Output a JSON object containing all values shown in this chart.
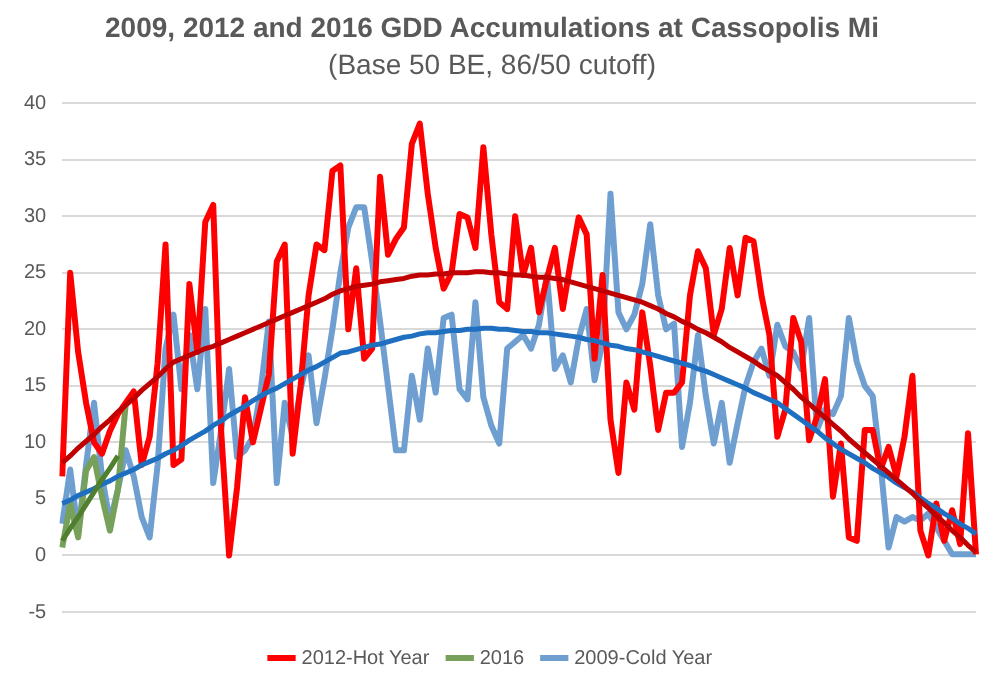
{
  "chart_data": {
    "type": "line",
    "title": "2009, 2012 and 2016 GDD Accumulations at Cassopolis Mi",
    "subtitle": "(Base 50 BE, 86/50 cutoff)",
    "categories": [
      null,
      null,
      null,
      null,
      null,
      null,
      null,
      null,
      null,
      null,
      null,
      null,
      null,
      null,
      null,
      null,
      null,
      null,
      null,
      null,
      null,
      null,
      null,
      null,
      null,
      null,
      null,
      null,
      null,
      null,
      null,
      null,
      null,
      null,
      null,
      null,
      null,
      null,
      null,
      null,
      null,
      null,
      null,
      null,
      null,
      null,
      null,
      null,
      null,
      null,
      null,
      null,
      null,
      null,
      null,
      null,
      null,
      null,
      null,
      null,
      null,
      null,
      null,
      null,
      null,
      null,
      null,
      null,
      null,
      null,
      null,
      null,
      null,
      null,
      null,
      null,
      null,
      null,
      null,
      null,
      null,
      null,
      null,
      null,
      null,
      null,
      null,
      null,
      null,
      null,
      null,
      null,
      null,
      null,
      null,
      null,
      null,
      null,
      null,
      null,
      null,
      null,
      null,
      null,
      null,
      null,
      null,
      null,
      null,
      null,
      null,
      null,
      null,
      null,
      null,
      null
    ],
    "ylim": [
      -5,
      40
    ],
    "yticks": [
      -5,
      0,
      5,
      10,
      15,
      20,
      25,
      30,
      35,
      40
    ],
    "tick_labels": "y",
    "grid": "y",
    "legend": "bottom",
    "marker": "none",
    "line_style": "solid",
    "series": [
      {
        "name": "2012-Hot Year",
        "color": "#ff0000",
        "values": [
          7,
          25,
          18,
          13.5,
          10,
          9,
          11,
          12.5,
          13.5,
          14.5,
          8,
          10.5,
          17,
          27.5,
          8,
          8.5,
          24,
          18,
          29.5,
          31,
          11,
          0,
          6,
          14,
          10,
          13,
          16,
          26,
          27.5,
          9,
          15,
          23,
          27.5,
          27,
          34,
          34.5,
          20,
          25.4,
          17.4,
          18.3,
          33.5,
          26.6,
          28,
          29,
          36.4,
          38.2,
          32,
          27.2,
          23.6,
          25,
          30.2,
          29.9,
          27.2,
          36.1,
          28.4,
          22.4,
          21.8,
          30,
          24.8,
          27.2,
          21.5,
          24.5,
          27.2,
          21.8,
          26,
          29.9,
          28.4,
          17.4,
          24.8,
          12,
          7.3,
          15.3,
          12.9,
          21.5,
          16.8,
          11.1,
          14.4,
          14.4,
          15.3,
          23,
          26.9,
          25.4,
          19.5,
          21.8,
          27.2,
          23,
          28.1,
          27.8,
          23,
          19.5,
          10.5,
          12.9,
          21,
          18.9,
          10.2,
          12.3,
          15.6,
          5.2,
          9.9,
          1.6,
          1.3,
          11.1,
          11.1,
          7.6,
          9.6,
          7,
          10.5,
          15.9,
          2.2,
          0,
          4.6,
          1.3,
          4,
          1,
          10.8,
          0.1
        ]
      },
      {
        "name": "2016",
        "color": "#77a05a",
        "values": [
          0.7,
          4.6,
          1.6,
          7.5,
          8.7,
          5.2,
          2.2,
          5.8,
          13.5,
          null,
          null,
          null,
          null,
          null,
          null,
          null,
          null,
          null,
          null,
          null,
          null,
          null,
          null,
          null,
          null,
          null,
          null,
          null,
          null,
          null,
          null,
          null,
          null,
          null,
          null,
          null,
          null,
          null,
          null,
          null,
          null,
          null,
          null,
          null,
          null,
          null,
          null,
          null,
          null,
          null,
          null,
          null,
          null,
          null,
          null,
          null,
          null,
          null,
          null,
          null,
          null,
          null,
          null,
          null,
          null,
          null,
          null,
          null,
          null,
          null,
          null,
          null,
          null,
          null,
          null,
          null,
          null,
          null,
          null,
          null,
          null,
          null,
          null,
          null,
          null,
          null,
          null,
          null,
          null,
          null,
          null,
          null,
          null,
          null,
          null,
          null,
          null,
          null,
          null,
          null,
          null,
          null,
          null,
          null,
          null,
          null,
          null,
          null,
          null,
          null,
          null,
          null,
          null,
          null,
          null,
          null
        ]
      },
      {
        "name": "2009-Cold Year",
        "color": "#6f9fd0",
        "values": [
          2.8,
          7.6,
          2,
          8,
          13.5,
          7,
          3,
          5.8,
          9.3,
          7,
          3.4,
          1.6,
          8,
          18.3,
          21.3,
          14.7,
          19.5,
          14.7,
          21.8,
          6.4,
          11.1,
          16.5,
          8.7,
          9.3,
          10.5,
          14.7,
          20.7,
          6.4,
          13.5,
          10.5,
          14.7,
          17.7,
          11.7,
          15.6,
          20,
          25,
          29,
          30.8,
          30.8,
          26,
          20.7,
          15,
          9.3,
          9.3,
          15.9,
          12,
          18.3,
          14.4,
          21,
          21.3,
          14.7,
          13.8,
          22.4,
          14,
          11.5,
          9.9,
          18.3,
          18.9,
          19.5,
          18.3,
          20.4,
          24.8,
          16.5,
          17.7,
          15.3,
          19.2,
          21.8,
          15.5,
          18.9,
          32,
          21.5,
          20,
          21.3,
          24,
          29.3,
          23,
          20,
          20.5,
          9.6,
          13.5,
          19.5,
          14.1,
          9.9,
          13.5,
          8.2,
          11.7,
          15,
          17.1,
          18.3,
          15.9,
          20.4,
          18.5,
          18,
          16.5,
          21,
          11.1,
          12.9,
          12.5,
          14.1,
          21,
          17.1,
          15,
          14.1,
          8,
          0.7,
          3.4,
          3,
          3.4,
          3.1,
          3.7,
          2.5,
          1.3,
          0.1,
          0.1,
          0.1,
          0.1
        ]
      },
      {
        "color": "#c00000",
        "values": [
          8.2,
          8.8,
          9.5,
          10.1,
          10.7,
          11.4,
          12,
          12.7,
          13.3,
          13.9,
          14.6,
          15.2,
          15.8,
          16.5,
          17.1,
          17.4,
          17.7,
          18,
          18.3,
          18.5,
          18.8,
          19.1,
          19.4,
          19.7,
          20,
          20.3,
          20.6,
          20.9,
          21.2,
          21.5,
          21.8,
          22.1,
          22.4,
          22.7,
          23.1,
          23.4,
          23.6,
          23.8,
          23.9,
          24,
          24.2,
          24.3,
          24.4,
          24.5,
          24.7,
          24.8,
          24.8,
          24.9,
          24.9,
          25,
          25,
          25,
          25.1,
          25.1,
          25,
          25,
          24.9,
          24.8,
          24.8,
          24.7,
          24.6,
          24.6,
          24.5,
          24.4,
          24.2,
          24,
          23.8,
          23.6,
          23.4,
          23.2,
          23,
          22.8,
          22.6,
          22.4,
          22.1,
          21.8,
          21.4,
          21.1,
          20.7,
          20.4,
          20,
          19.7,
          19.3,
          18.9,
          18.4,
          18,
          17.6,
          17.2,
          16.7,
          16.3,
          15.9,
          15.3,
          14.7,
          14,
          13.4,
          12.8,
          12.2,
          11.6,
          11,
          10.3,
          9.7,
          9.1,
          8.5,
          7.9,
          7.3,
          6.7,
          6.1,
          5.5,
          4.8,
          4.2,
          3.5,
          2.9,
          2.2,
          1.6,
          0.9,
          0.3
        ]
      },
      {
        "color": "#4f7f2f",
        "values": [
          1.3,
          2.4,
          3.4,
          4.5,
          5.6,
          6.7,
          7.7,
          8.8,
          null,
          null,
          null,
          null,
          null,
          null,
          null,
          null,
          null,
          null,
          null,
          null,
          null,
          null,
          null,
          null,
          null,
          null,
          null,
          null,
          null,
          null,
          null,
          null,
          null,
          null,
          null,
          null,
          null,
          null,
          null,
          null,
          null,
          null,
          null,
          null,
          null,
          null,
          null,
          null,
          null,
          null,
          null,
          null,
          null,
          null,
          null,
          null,
          null,
          null,
          null,
          null,
          null,
          null,
          null,
          null,
          null,
          null,
          null,
          null,
          null,
          null,
          null,
          null,
          null,
          null,
          null,
          null,
          null,
          null,
          null,
          null,
          null,
          null,
          null,
          null,
          null,
          null,
          null,
          null,
          null,
          null,
          null,
          null,
          null,
          null,
          null,
          null,
          null,
          null,
          null,
          null,
          null,
          null,
          null,
          null,
          null,
          null,
          null,
          null,
          null,
          null,
          null,
          null,
          null,
          null,
          null,
          null
        ]
      },
      {
        "color": "#1f6fc0",
        "values": [
          4.6,
          4.9,
          5.3,
          5.6,
          5.9,
          6.3,
          6.6,
          7,
          7.3,
          7.6,
          8,
          8.3,
          8.6,
          9,
          9.3,
          9.7,
          10.2,
          10.6,
          11,
          11.5,
          11.9,
          12.4,
          12.8,
          13.2,
          13.7,
          14.1,
          14.5,
          14.8,
          15.2,
          15.6,
          16,
          16.4,
          16.7,
          17.1,
          17.5,
          17.9,
          18,
          18.2,
          18.4,
          18.6,
          18.7,
          18.9,
          19.1,
          19.3,
          19.4,
          19.6,
          19.7,
          19.7,
          19.8,
          19.9,
          19.9,
          20,
          20,
          20.1,
          20.1,
          20,
          20,
          19.9,
          19.8,
          19.8,
          19.7,
          19.7,
          19.6,
          19.5,
          19.4,
          19.3,
          19.1,
          19,
          18.8,
          18.6,
          18.5,
          18.3,
          18.2,
          18,
          17.8,
          17.6,
          17.4,
          17.2,
          17,
          16.8,
          16.5,
          16.3,
          16,
          15.7,
          15.4,
          15.1,
          14.8,
          14.4,
          14.1,
          13.8,
          13.5,
          13,
          12.5,
          12,
          11.5,
          11,
          10.4,
          9.9,
          9.4,
          9,
          8.6,
          8.2,
          7.7,
          7.3,
          6.9,
          6.4,
          6,
          5.6,
          5.1,
          4.6,
          4.2,
          3.7,
          3.3,
          2.8,
          2.4,
          1.9
        ]
      }
    ]
  }
}
